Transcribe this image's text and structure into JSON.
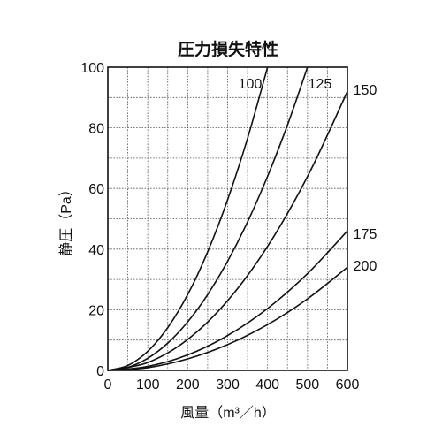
{
  "chart_data": {
    "type": "line",
    "title": "圧力損失特性",
    "xlabel": "風量（m³／h）",
    "ylabel": "静圧（Pa）",
    "xlim": [
      0,
      600
    ],
    "ylim": [
      0,
      100
    ],
    "x_ticks": [
      "0",
      "100",
      "200",
      "300",
      "400",
      "500",
      "600"
    ],
    "y_ticks": [
      "0",
      "20",
      "40",
      "60",
      "80",
      "100"
    ],
    "grid": true,
    "legend": "none",
    "series": [
      {
        "name": "100",
        "x": [
          0,
          50,
          100,
          150,
          200,
          250,
          300,
          350,
          400
        ],
        "y": [
          0,
          1.6,
          6.3,
          14.1,
          25,
          39.1,
          56.3,
          76.6,
          100
        ]
      },
      {
        "name": "125",
        "x": [
          0,
          50,
          100,
          150,
          200,
          250,
          300,
          350,
          400,
          450,
          500
        ],
        "y": [
          0,
          1.0,
          4.0,
          9.0,
          16,
          25,
          36,
          49,
          64,
          81,
          100
        ]
      },
      {
        "name": "150",
        "x": [
          0,
          100,
          200,
          300,
          400,
          500,
          600
        ],
        "y": [
          0,
          2.6,
          10.2,
          23,
          40.9,
          63.9,
          92
        ]
      },
      {
        "name": "175",
        "x": [
          0,
          100,
          200,
          300,
          400,
          500,
          600
        ],
        "y": [
          0,
          1.3,
          5.1,
          11.5,
          20.4,
          31.9,
          46
        ]
      },
      {
        "name": "200",
        "x": [
          0,
          100,
          200,
          300,
          400,
          500,
          600
        ],
        "y": [
          0,
          0.9,
          3.8,
          8.5,
          15.1,
          23.6,
          34
        ]
      }
    ]
  }
}
